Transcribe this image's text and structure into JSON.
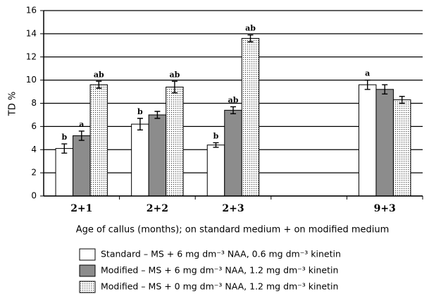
{
  "chart_data": {
    "type": "bar",
    "y_label": "TD %",
    "x_label": "Age of callus (months); on standard medium + on modified medium",
    "categories": [
      "2+1",
      "2+2",
      "2+3",
      null,
      "9+3"
    ],
    "series": [
      {
        "name": "Standard – MS + 6 mg dm⁻³ NAA, 0.6 mg dm⁻³ kinetin",
        "color": "#ffffff",
        "values": [
          4.1,
          6.2,
          4.4,
          null,
          9.6
        ],
        "errors": [
          0.4,
          0.5,
          0.2,
          null,
          0.4
        ],
        "significance": [
          "b",
          "b",
          "b",
          null,
          "a"
        ]
      },
      {
        "name": "Modified – MS + 6 mg dm⁻³ NAA, 1.2 mg dm⁻³ kinetin",
        "color": "#8c8c8c",
        "values": [
          5.2,
          7.0,
          7.4,
          null,
          9.2
        ],
        "errors": [
          0.4,
          0.3,
          0.3,
          null,
          0.4
        ],
        "significance": [
          "a",
          null,
          "ab",
          null,
          null
        ]
      },
      {
        "name": "Modified – MS + 0 mg dm⁻³ NAA, 1.2 mg dm⁻³ kinetin",
        "color": "#ffffff",
        "pattern": "dots",
        "values": [
          9.6,
          9.4,
          13.6,
          null,
          8.3
        ],
        "errors": [
          0.3,
          0.5,
          0.3,
          null,
          0.3
        ],
        "significance": [
          "ab",
          "ab",
          "ab",
          null,
          null
        ]
      }
    ],
    "ylim": [
      0,
      16
    ],
    "yticks": [
      0,
      2,
      4,
      6,
      8,
      10,
      12,
      14,
      16
    ],
    "grid": true
  }
}
